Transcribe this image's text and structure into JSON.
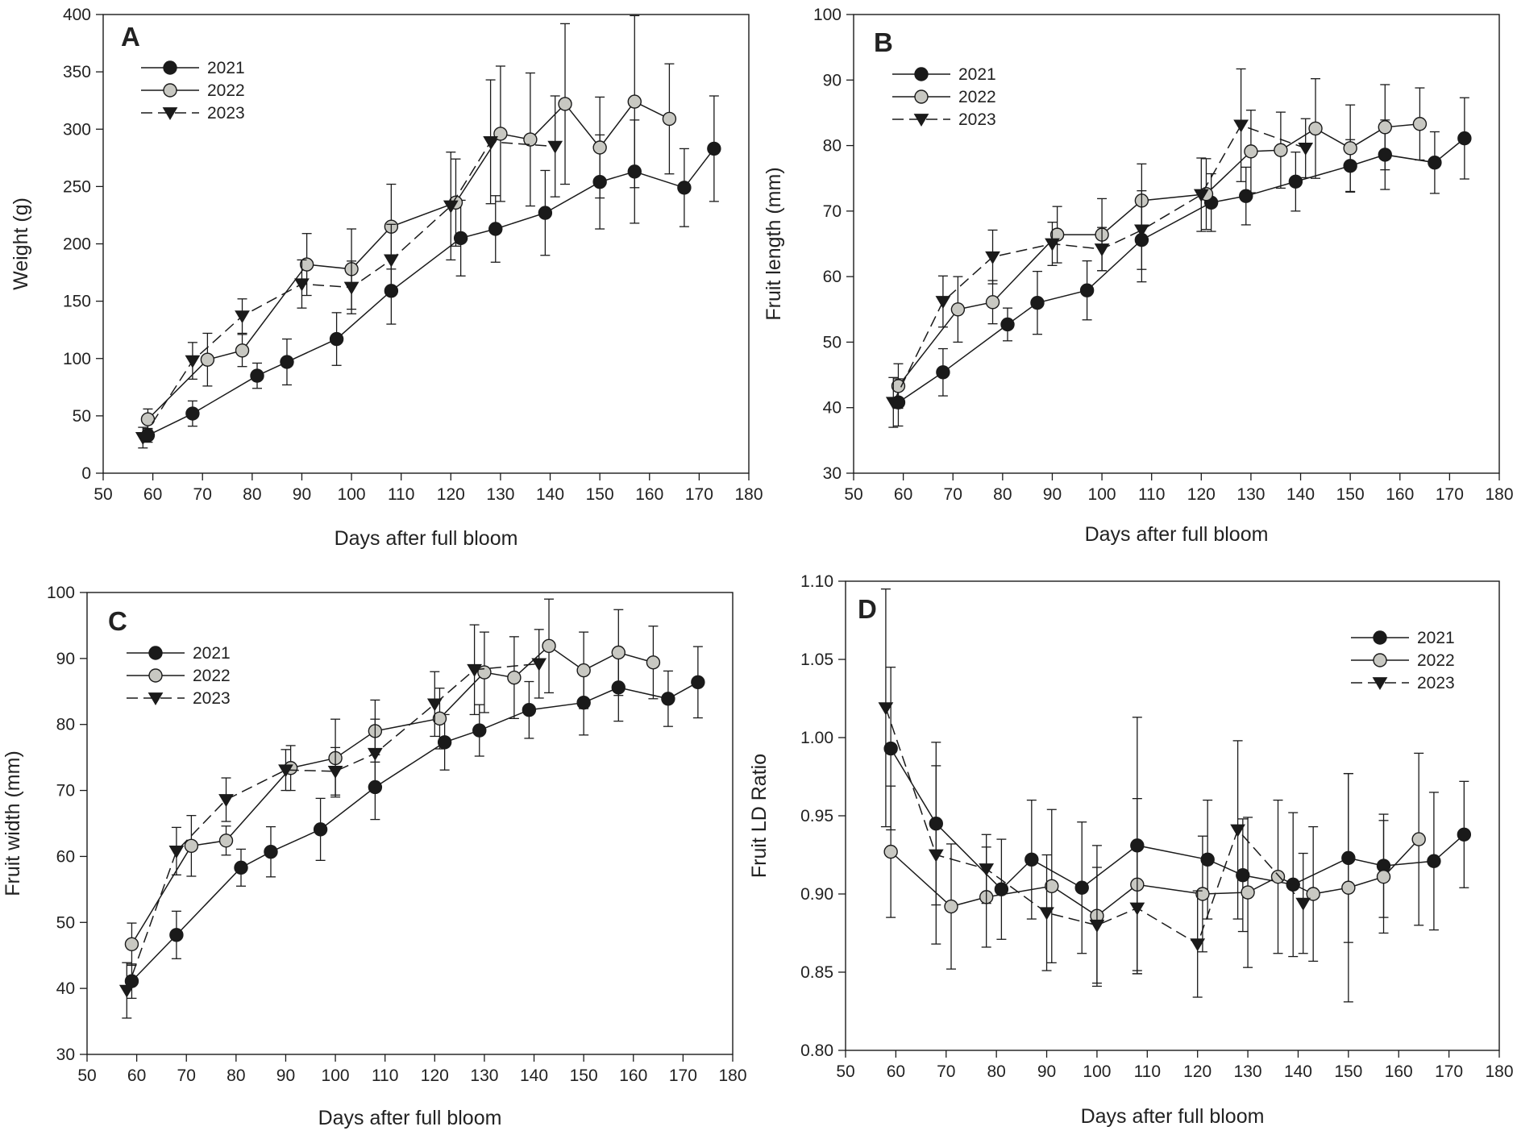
{
  "figure": {
    "background": "#ffffff",
    "line_color": "#1a1a1a",
    "marker_gray": "#c8c8c2"
  },
  "chart_data": [
    {
      "type": "line",
      "panel": "A",
      "title": "",
      "xlabel": "Days after full bloom",
      "ylabel": "Weight (g)",
      "xlim": [
        50,
        180
      ],
      "ylim": [
        0,
        400
      ],
      "xticks": [
        50,
        60,
        70,
        80,
        90,
        100,
        110,
        120,
        130,
        140,
        150,
        160,
        170,
        180
      ],
      "yticks": [
        0,
        50,
        100,
        150,
        200,
        250,
        300,
        350,
        400
      ],
      "legend_position": "top-left",
      "series": [
        {
          "name": "2021",
          "marker": "circle-black",
          "linestyle": "solid",
          "x": [
            59,
            68,
            81,
            87,
            97,
            108,
            122,
            129,
            139,
            150,
            157,
            167,
            173
          ],
          "y": [
            33,
            52,
            85,
            97,
            117,
            159,
            205,
            213,
            227,
            254,
            263,
            249,
            283
          ],
          "err": [
            6,
            11,
            11,
            20,
            23,
            29,
            33,
            29,
            37,
            41,
            45,
            34,
            46
          ]
        },
        {
          "name": "2022",
          "marker": "circle-gray",
          "linestyle": "solid",
          "x": [
            59,
            71,
            78,
            91,
            100,
            108,
            121,
            130,
            136,
            143,
            150,
            157,
            164
          ],
          "y": [
            47,
            99,
            107,
            182,
            178,
            215,
            236,
            296,
            291,
            322,
            284,
            324,
            309
          ],
          "err": [
            9,
            23,
            14,
            27,
            35,
            37,
            38,
            59,
            58,
            70,
            44,
            75,
            48
          ]
        },
        {
          "name": "2023",
          "marker": "triangle-down-black",
          "linestyle": "dashed",
          "x": [
            58,
            68,
            78,
            90,
            100,
            108,
            120,
            128,
            141
          ],
          "y": [
            31,
            98,
            137,
            165,
            162,
            186,
            233,
            289,
            285
          ],
          "err": [
            9,
            16,
            15,
            21,
            23,
            31,
            47,
            54,
            44
          ]
        }
      ]
    },
    {
      "type": "line",
      "panel": "B",
      "title": "",
      "xlabel": "Days after full bloom",
      "ylabel": "Fruit length (mm)",
      "xlim": [
        50,
        180
      ],
      "ylim": [
        30,
        100
      ],
      "xticks": [
        50,
        60,
        70,
        80,
        90,
        100,
        110,
        120,
        130,
        140,
        150,
        160,
        170,
        180
      ],
      "yticks": [
        30,
        40,
        50,
        60,
        70,
        80,
        90,
        100
      ],
      "legend_position": "top-left",
      "series": [
        {
          "name": "2021",
          "marker": "circle-black",
          "linestyle": "solid",
          "x": [
            59,
            68,
            81,
            87,
            97,
            108,
            122,
            129,
            139,
            150,
            157,
            167,
            173
          ],
          "y": [
            40.8,
            45.4,
            52.7,
            56.0,
            57.9,
            65.6,
            71.3,
            72.3,
            74.5,
            76.9,
            78.6,
            77.4,
            81.1
          ],
          "err": [
            3.6,
            3.6,
            2.5,
            4.8,
            4.5,
            6.4,
            4.4,
            4.4,
            4.5,
            4.0,
            5.3,
            4.7,
            6.2
          ]
        },
        {
          "name": "2022",
          "marker": "circle-gray",
          "linestyle": "solid",
          "x": [
            59,
            71,
            78,
            91,
            100,
            108,
            121,
            130,
            136,
            143,
            150,
            157,
            164
          ],
          "y": [
            43.3,
            55.0,
            56.1,
            66.4,
            66.4,
            71.6,
            72.6,
            79.1,
            79.3,
            82.6,
            79.6,
            82.8,
            83.3
          ],
          "err": [
            3.4,
            5.0,
            3.3,
            4.3,
            5.5,
            5.6,
            5.4,
            6.3,
            5.8,
            7.6,
            6.6,
            6.5,
            5.5
          ]
        },
        {
          "name": "2023",
          "marker": "triangle-down-black",
          "linestyle": "dashed",
          "x": [
            58,
            68,
            78,
            90,
            100,
            108,
            120,
            128,
            141
          ],
          "y": [
            40.8,
            56.2,
            63.0,
            65.0,
            64.2,
            67.1,
            72.5,
            83.1,
            79.6
          ],
          "err": [
            3.8,
            3.9,
            4.1,
            3.3,
            3.3,
            6.0,
            5.6,
            8.6,
            4.5
          ]
        }
      ]
    },
    {
      "type": "line",
      "panel": "C",
      "title": "",
      "xlabel": "Days after full bloom",
      "ylabel": "Fruit width (mm)",
      "xlim": [
        50,
        180
      ],
      "ylim": [
        30,
        100
      ],
      "xticks": [
        50,
        60,
        70,
        80,
        90,
        100,
        110,
        120,
        130,
        140,
        150,
        160,
        170,
        180
      ],
      "yticks": [
        30,
        40,
        50,
        60,
        70,
        80,
        90,
        100
      ],
      "legend_position": "top-left",
      "series": [
        {
          "name": "2021",
          "marker": "circle-black",
          "linestyle": "solid",
          "x": [
            59,
            68,
            81,
            87,
            97,
            108,
            122,
            129,
            139,
            150,
            157,
            167,
            173
          ],
          "y": [
            41.1,
            48.1,
            58.3,
            60.7,
            64.1,
            70.5,
            77.3,
            79.1,
            82.2,
            83.3,
            85.6,
            83.9,
            86.4
          ],
          "err": [
            2.6,
            3.6,
            2.8,
            3.8,
            4.7,
            4.9,
            4.2,
            3.9,
            4.3,
            4.9,
            5.1,
            4.2,
            5.4
          ]
        },
        {
          "name": "2022",
          "marker": "circle-gray",
          "linestyle": "solid",
          "x": [
            59,
            71,
            78,
            91,
            100,
            108,
            121,
            130,
            136,
            143,
            150,
            157,
            164
          ],
          "y": [
            46.7,
            61.6,
            62.4,
            73.4,
            74.9,
            79.0,
            80.9,
            87.9,
            87.1,
            91.9,
            88.2,
            90.9,
            89.4
          ],
          "err": [
            3.2,
            4.6,
            2.2,
            3.4,
            5.9,
            4.7,
            4.6,
            6.1,
            6.2,
            7.1,
            5.8,
            6.5,
            5.5
          ]
        },
        {
          "name": "2023",
          "marker": "triangle-down-black",
          "linestyle": "dashed",
          "x": [
            58,
            68,
            78,
            90,
            100,
            108,
            120,
            128,
            141
          ],
          "y": [
            39.7,
            60.8,
            68.6,
            73.1,
            72.9,
            75.6,
            83.1,
            88.3,
            89.2
          ],
          "err": [
            4.2,
            3.6,
            3.3,
            3.1,
            3.6,
            5.2,
            4.9,
            6.8,
            5.2
          ]
        }
      ]
    },
    {
      "type": "line",
      "panel": "D",
      "title": "",
      "xlabel": "Days after full bloom",
      "ylabel": "Fruit LD Ratio",
      "xlim": [
        50,
        180
      ],
      "ylim": [
        0.8,
        1.1
      ],
      "xticks": [
        50,
        60,
        70,
        80,
        90,
        100,
        110,
        120,
        130,
        140,
        150,
        160,
        170,
        180
      ],
      "yticks": [
        0.8,
        0.85,
        0.9,
        0.95,
        1.0,
        1.05,
        1.1
      ],
      "ytick_labels": [
        "0.80",
        "0.85",
        "0.90",
        "0.95",
        "1.00",
        "1.05",
        "1.10"
      ],
      "legend_position": "top-right",
      "series": [
        {
          "name": "2021",
          "marker": "circle-black",
          "linestyle": "solid",
          "x": [
            59,
            68,
            81,
            87,
            97,
            108,
            122,
            129,
            139,
            150,
            157,
            167,
            173
          ],
          "y": [
            0.993,
            0.945,
            0.903,
            0.922,
            0.904,
            0.931,
            0.922,
            0.912,
            0.906,
            0.923,
            0.918,
            0.921,
            0.938
          ],
          "err": [
            0.052,
            0.052,
            0.032,
            0.038,
            0.042,
            0.082,
            0.038,
            0.036,
            0.046,
            0.054,
            0.033,
            0.044,
            0.034
          ]
        },
        {
          "name": "2022",
          "marker": "circle-gray",
          "linestyle": "solid",
          "x": [
            59,
            71,
            78,
            91,
            100,
            108,
            121,
            130,
            136,
            143,
            150,
            157,
            164
          ],
          "y": [
            0.927,
            0.892,
            0.898,
            0.905,
            0.886,
            0.906,
            0.9,
            0.901,
            0.911,
            0.9,
            0.904,
            0.911,
            0.935
          ],
          "err": [
            0.042,
            0.04,
            0.032,
            0.049,
            0.045,
            0.055,
            0.037,
            0.048,
            0.049,
            0.043,
            0.073,
            0.036,
            0.055
          ]
        },
        {
          "name": "2023",
          "marker": "triangle-down-black",
          "linestyle": "dashed",
          "x": [
            58,
            68,
            78,
            90,
            100,
            108,
            120,
            128,
            141
          ],
          "y": [
            1.019,
            0.925,
            0.916,
            0.888,
            0.88,
            0.891,
            0.868,
            0.941,
            0.894
          ],
          "err": [
            0.076,
            0.057,
            0.022,
            0.037,
            0.037,
            0.042,
            0.034,
            0.057,
            0.032
          ]
        }
      ]
    }
  ]
}
